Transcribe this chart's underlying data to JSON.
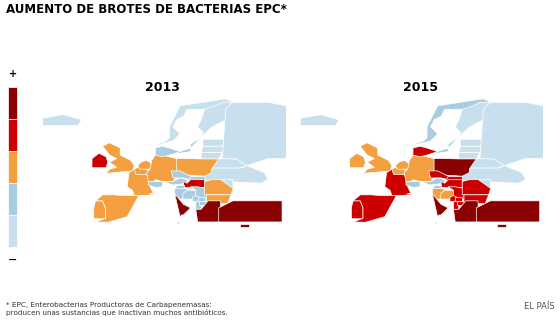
{
  "title": "AUMENTO DE BROTES DE BACTERIAS EPC*",
  "year_left": "2013",
  "year_right": "2015",
  "footnote": "* EPC, Enterobacterias Productoras de Carbapenemasas:\nproducen unas sustancias que inactivan muchos antibióticos.",
  "source": "EL PAÍS",
  "colors": {
    "dark_red": "#8B0000",
    "red": "#CC0000",
    "orange": "#F5A040",
    "light_blue": "#A8CCE0",
    "very_light_blue": "#C8E0EE",
    "white": "#FFFFFF",
    "no_data": "#D8D8D8",
    "background": "#FFFFFF",
    "sea": "#DCF0F8"
  },
  "color_scale": [
    "#8B0000",
    "#CC0000",
    "#F5A040",
    "#A8CCE0",
    "#C8E0EE"
  ],
  "country_colors_2013": {
    "Iceland": "#C8E0EE",
    "Norway": "#C8E0EE",
    "Sweden": "#A8CCE0",
    "Finland": "#C8E0EE",
    "Estonia": "#C8E0EE",
    "Latvia": "#C8E0EE",
    "Lithuania": "#C8E0EE",
    "Belarus": "#C8E0EE",
    "Ukraine": "#C8E0EE",
    "Moldova": "#C8E0EE",
    "Russia": "#C8E0EE",
    "Ireland": "#CC0000",
    "UnitedKingdom": "#F5A040",
    "Portugal": "#F5A040",
    "Spain": "#F5A040",
    "France": "#F5A040",
    "Belgium": "#F5A040",
    "Netherlands": "#F5A040",
    "Luxembourg": "#F5A040",
    "Germany": "#F5A040",
    "Denmark": "#A8CCE0",
    "Poland": "#F5A040",
    "CzechRepublic": "#A8CCE0",
    "Slovakia": "#A8CCE0",
    "Austria": "#A8CCE0",
    "Switzerland": "#A8CCE0",
    "Hungary": "#CC0000",
    "Slovenia": "#A8CCE0",
    "Croatia": "#A8CCE0",
    "BosniaHerzegovina": "#A8CCE0",
    "Serbia": "#A8CCE0",
    "Montenegro": "#A8CCE0",
    "Albania": "#A8CCE0",
    "Macedonia": "#A8CCE0",
    "Kosovo": "#A8CCE0",
    "Romania": "#F5A040",
    "Bulgaria": "#F5A040",
    "Greece": "#8B0000",
    "Italy": "#8B0000",
    "Malta": "#8B0000",
    "Cyprus": "#8B0000",
    "Turkey": "#8B0000"
  },
  "country_colors_2015": {
    "Iceland": "#C8E0EE",
    "Norway": "#A8CCE0",
    "Sweden": "#A8CCE0",
    "Finland": "#C8E0EE",
    "Estonia": "#C8E0EE",
    "Latvia": "#C8E0EE",
    "Lithuania": "#C8E0EE",
    "Belarus": "#C8E0EE",
    "Ukraine": "#C8E0EE",
    "Moldova": "#C8E0EE",
    "Russia": "#C8E0EE",
    "Ireland": "#F5A040",
    "UnitedKingdom": "#F5A040",
    "Portugal": "#CC0000",
    "Spain": "#CC0000",
    "France": "#CC0000",
    "Belgium": "#F5A040",
    "Netherlands": "#F5A040",
    "Luxembourg": "#F5A040",
    "Germany": "#F5A040",
    "Denmark": "#CC0000",
    "Poland": "#8B0000",
    "CzechRepublic": "#CC0000",
    "Slovakia": "#CC0000",
    "Austria": "#A8CCE0",
    "Switzerland": "#A8CCE0",
    "Hungary": "#CC0000",
    "Slovenia": "#A8CCE0",
    "Croatia": "#F5A040",
    "BosniaHerzegovina": "#F5A040",
    "Serbia": "#CC0000",
    "Montenegro": "#CC0000",
    "Albania": "#CC0000",
    "Macedonia": "#CC0000",
    "Kosovo": "#CC0000",
    "Romania": "#CC0000",
    "Bulgaria": "#CC0000",
    "Greece": "#8B0000",
    "Italy": "#8B0000",
    "Malta": "#8B0000",
    "Cyprus": "#8B0000",
    "Turkey": "#8B0000"
  }
}
